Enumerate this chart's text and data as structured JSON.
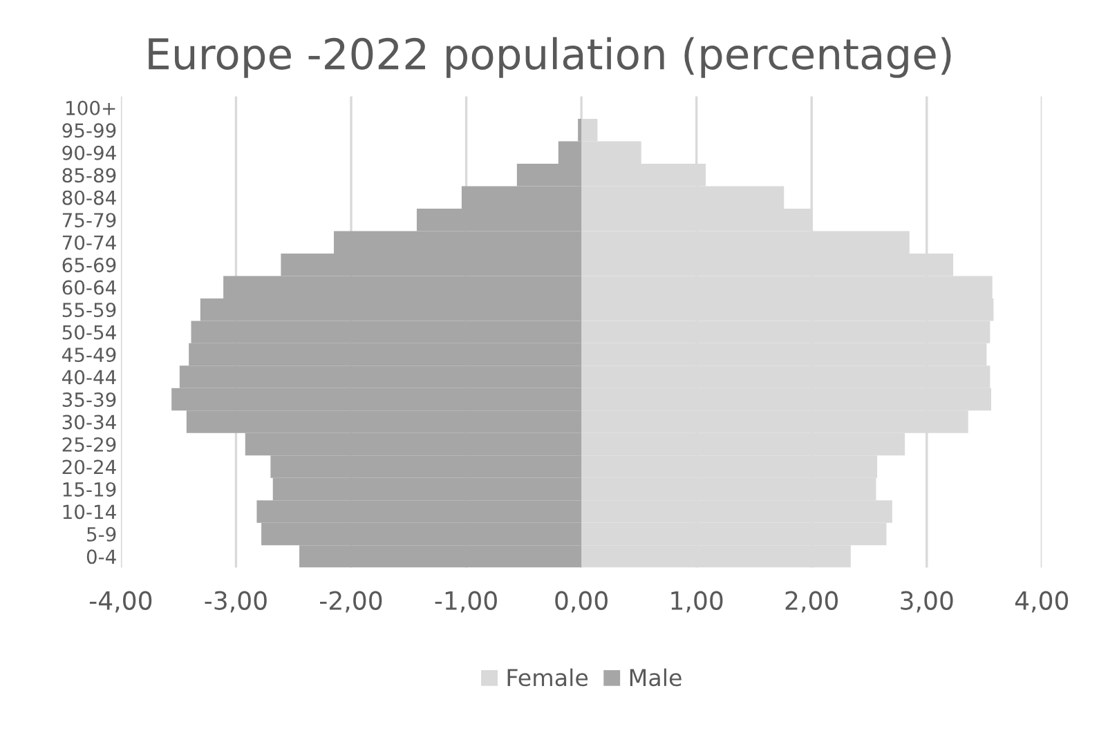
{
  "chart_data": {
    "type": "bar",
    "orientation": "horizontal",
    "title": "Europe -2022 population (percentage)",
    "categories": [
      "100+",
      "95-99",
      "90-94",
      "85-89",
      "80-84",
      "75-79",
      "70-74",
      "65-69",
      "60-64",
      "55-59",
      "50-54",
      "45-49",
      "40-44",
      "35-39",
      "30-34",
      "25-29",
      "20-24",
      "15-19",
      "10-14",
      "5-9",
      "0-4"
    ],
    "series": [
      {
        "name": "Female",
        "color": "#d9d9d9",
        "values": [
          null,
          0.14,
          0.52,
          1.08,
          1.76,
          2.01,
          2.85,
          3.23,
          3.57,
          3.58,
          3.55,
          3.52,
          3.55,
          3.56,
          3.36,
          2.81,
          2.57,
          2.56,
          2.7,
          2.65,
          2.34
        ]
      },
      {
        "name": "Male",
        "color": "#a6a6a6",
        "values": [
          null,
          -0.03,
          -0.2,
          -0.56,
          -1.04,
          -1.43,
          -2.15,
          -2.61,
          -3.11,
          -3.31,
          -3.39,
          -3.41,
          -3.49,
          -3.56,
          -3.43,
          -2.92,
          -2.7,
          -2.68,
          -2.82,
          -2.78,
          -2.45
        ]
      }
    ],
    "xlim": [
      -4,
      4
    ],
    "xticks": [
      {
        "value": -4,
        "label": "-4,00"
      },
      {
        "value": -3,
        "label": "-3,00"
      },
      {
        "value": -2,
        "label": "-2,00"
      },
      {
        "value": -1,
        "label": "-1,00"
      },
      {
        "value": 0,
        "label": "0,00"
      },
      {
        "value": 1,
        "label": "1,00"
      },
      {
        "value": 2,
        "label": "2,00"
      },
      {
        "value": 3,
        "label": "3,00"
      },
      {
        "value": 4,
        "label": "4,00"
      }
    ],
    "grid": "x",
    "legend": "bottom",
    "stacked": true
  }
}
